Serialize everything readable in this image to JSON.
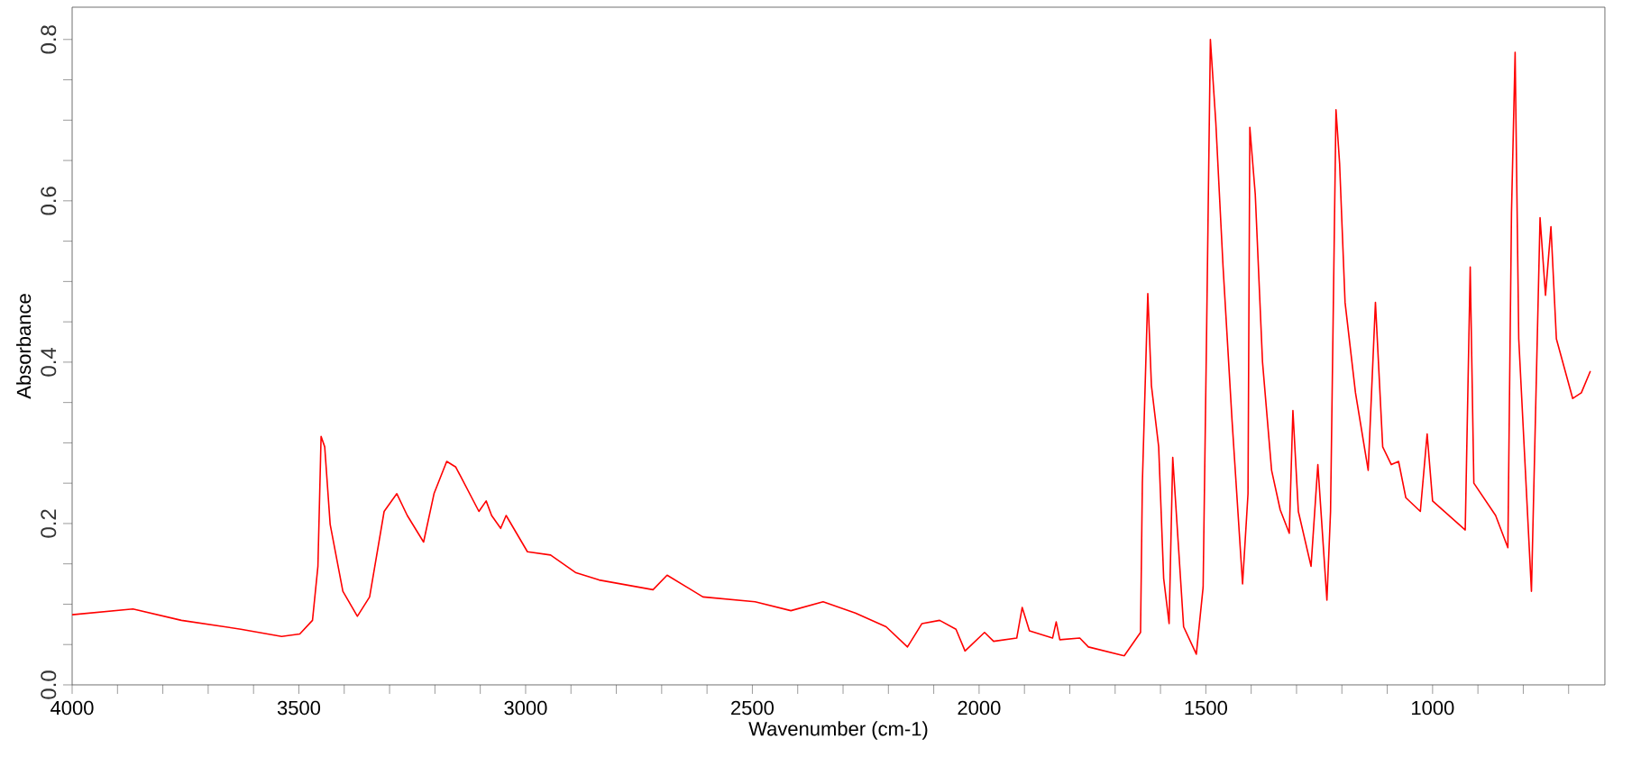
{
  "chart_data": {
    "type": "line",
    "xlabel": "Wavenumber (cm-1)",
    "ylabel": "Absorbance",
    "xlim": [
      4000,
      620
    ],
    "ylim": [
      0,
      0.84
    ],
    "xticks": [
      4000,
      {
        "value": 3900,
        "label": null
      },
      {
        "value": 3800,
        "label": null
      },
      {
        "value": 3700,
        "label": null
      },
      {
        "value": 3600,
        "label": null
      },
      3500,
      {
        "value": 3400,
        "label": null
      },
      {
        "value": 3300,
        "label": null
      },
      {
        "value": 3200,
        "label": null
      },
      {
        "value": 3100,
        "label": null
      },
      3000,
      {
        "value": 2900,
        "label": null
      },
      {
        "value": 2800,
        "label": null
      },
      {
        "value": 2700,
        "label": null
      },
      {
        "value": 2600,
        "label": null
      },
      2500,
      {
        "value": 2400,
        "label": null
      },
      {
        "value": 2300,
        "label": null
      },
      {
        "value": 2200,
        "label": null
      },
      {
        "value": 2100,
        "label": null
      },
      2000,
      {
        "value": 1900,
        "label": null
      },
      {
        "value": 1800,
        "label": null
      },
      {
        "value": 1700,
        "label": null
      },
      {
        "value": 1600,
        "label": null
      },
      1500,
      {
        "value": 1400,
        "label": null
      },
      {
        "value": 1300,
        "label": null
      },
      {
        "value": 1200,
        "label": null
      },
      {
        "value": 1100,
        "label": null
      },
      1000,
      {
        "value": 900,
        "label": null
      },
      {
        "value": 800,
        "label": null
      },
      {
        "value": 700,
        "label": null
      }
    ],
    "yticks": [
      {
        "value": 0,
        "label": "0.0"
      },
      {
        "value": 0.05,
        "label": null
      },
      {
        "value": 0.1,
        "label": null
      },
      {
        "value": 0.15,
        "label": null
      },
      0.2,
      {
        "value": 0.25,
        "label": null
      },
      {
        "value": 0.3,
        "label": null
      },
      {
        "value": 0.35,
        "label": null
      },
      0.4,
      {
        "value": 0.45,
        "label": null
      },
      {
        "value": 0.5,
        "label": null
      },
      {
        "value": 0.55,
        "label": null
      },
      0.6,
      {
        "value": 0.65,
        "label": null
      },
      {
        "value": 0.7,
        "label": null
      },
      {
        "value": 0.75,
        "label": null
      },
      0.8
    ],
    "grid": false,
    "marker": "none",
    "line_style": "solid",
    "series": [
      {
        "color": "#ff0000",
        "x": [
          4000,
          3866,
          3759,
          3628,
          3538,
          3498,
          3470,
          3458,
          3451,
          3443,
          3431,
          3403,
          3371,
          3344,
          3312,
          3284,
          3261,
          3225,
          3202,
          3174,
          3154,
          3103,
          3087,
          3075,
          3055,
          3043,
          2996,
          2945,
          2889,
          2838,
          2719,
          2688,
          2609,
          2494,
          2415,
          2344,
          2273,
          2205,
          2158,
          2126,
          2087,
          2051,
          2031,
          1988,
          1968,
          1917,
          1905,
          1889,
          1838,
          1830,
          1822,
          1778,
          1759,
          1680,
          1644,
          1640,
          1628,
          1620,
          1604,
          1593,
          1581,
          1573,
          1561,
          1549,
          1521,
          1506,
          1498,
          1490,
          1478,
          1462,
          1442,
          1419,
          1407,
          1403,
          1391,
          1375,
          1355,
          1336,
          1316,
          1308,
          1296,
          1268,
          1253,
          1233,
          1225,
          1213,
          1205,
          1193,
          1170,
          1142,
          1126,
          1110,
          1091,
          1075,
          1059,
          1027,
          1012,
          1000,
          928,
          917,
          909,
          861,
          834,
          826,
          818,
          810,
          782,
          763,
          751,
          739,
          727,
          691,
          672,
          652
        ],
        "values": [
          0.087,
          0.094,
          0.08,
          0.069,
          0.06,
          0.063,
          0.08,
          0.147,
          0.308,
          0.295,
          0.199,
          0.116,
          0.085,
          0.109,
          0.215,
          0.237,
          0.21,
          0.177,
          0.237,
          0.277,
          0.27,
          0.215,
          0.228,
          0.21,
          0.194,
          0.21,
          0.165,
          0.161,
          0.139,
          0.13,
          0.118,
          0.136,
          0.109,
          0.103,
          0.092,
          0.103,
          0.089,
          0.072,
          0.047,
          0.076,
          0.08,
          0.069,
          0.042,
          0.065,
          0.054,
          0.058,
          0.096,
          0.067,
          0.058,
          0.078,
          0.056,
          0.058,
          0.047,
          0.036,
          0.065,
          0.25,
          0.485,
          0.371,
          0.295,
          0.132,
          0.076,
          0.282,
          0.177,
          0.072,
          0.038,
          0.121,
          0.451,
          0.8,
          0.697,
          0.518,
          0.326,
          0.125,
          0.237,
          0.691,
          0.608,
          0.4,
          0.266,
          0.217,
          0.188,
          0.34,
          0.215,
          0.147,
          0.273,
          0.105,
          0.215,
          0.713,
          0.646,
          0.474,
          0.362,
          0.266,
          0.474,
          0.295,
          0.273,
          0.277,
          0.232,
          0.215,
          0.311,
          0.228,
          0.192,
          0.518,
          0.25,
          0.21,
          0.17,
          0.585,
          0.784,
          0.429,
          0.116,
          0.579,
          0.483,
          0.568,
          0.429,
          0.355,
          0.362,
          0.389
        ]
      }
    ]
  }
}
